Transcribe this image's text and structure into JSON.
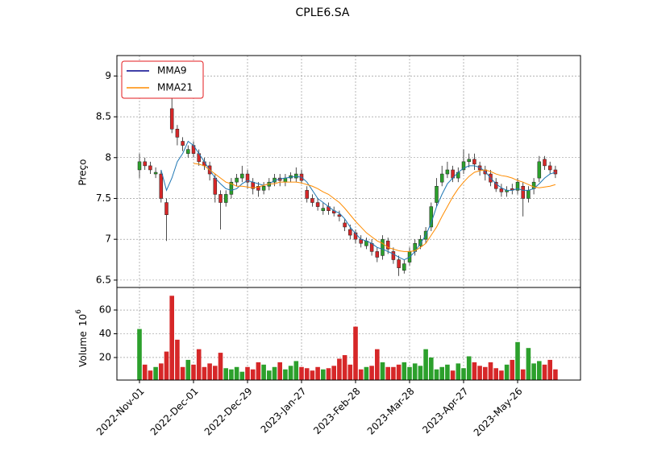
{
  "chart_data": {
    "type": "candlestick",
    "title": "CPLE6.SA",
    "ylabel": "Preço",
    "ylim": [
      6.41,
      9.25
    ],
    "yticks": [
      6.5,
      7.0,
      7.5,
      8.0,
      8.5,
      9.0
    ],
    "grid": true,
    "legend": "upper left",
    "up_color": "#2ca02c",
    "down_color": "#d62728",
    "categories": [
      "2022-Nov-01",
      null,
      null,
      null,
      null,
      null,
      null,
      null,
      null,
      null,
      "2022-Dec-01",
      null,
      null,
      null,
      null,
      null,
      null,
      null,
      null,
      null,
      "2022-Dec-29",
      null,
      null,
      null,
      null,
      null,
      null,
      null,
      null,
      null,
      "2023-Jan-27",
      null,
      null,
      null,
      null,
      null,
      null,
      null,
      null,
      null,
      "2023-Feb-28",
      null,
      null,
      null,
      null,
      null,
      null,
      null,
      null,
      null,
      "2023-Mar-28",
      null,
      null,
      null,
      null,
      null,
      null,
      null,
      null,
      null,
      "2023-Apr-27",
      null,
      null,
      null,
      null,
      null,
      null,
      null,
      null,
      null,
      "2023-May-26",
      null,
      null,
      null,
      null,
      null,
      null,
      null
    ],
    "open": [
      7.85,
      7.95,
      7.9,
      7.8,
      7.8,
      7.45,
      8.6,
      8.35,
      8.2,
      8.05,
      8.15,
      8.05,
      7.95,
      7.9,
      7.75,
      7.55,
      7.45,
      7.55,
      7.7,
      7.75,
      7.8,
      7.7,
      7.65,
      7.6,
      7.65,
      7.7,
      7.75,
      7.7,
      7.75,
      7.75,
      7.8,
      7.6,
      7.5,
      7.45,
      7.35,
      7.4,
      7.35,
      7.3,
      7.2,
      7.12,
      7.08,
      7.0,
      6.92,
      6.95,
      6.85,
      6.8,
      6.98,
      6.85,
      6.75,
      6.62,
      6.72,
      6.85,
      6.92,
      7.0,
      7.15,
      7.45,
      7.7,
      7.8,
      7.85,
      7.75,
      7.85,
      7.95,
      7.98,
      7.9,
      7.85,
      7.8,
      7.7,
      7.62,
      7.58,
      7.62,
      7.6,
      7.65,
      7.5,
      7.62,
      7.75,
      7.98,
      7.9,
      7.85
    ],
    "high": [
      8.05,
      8.0,
      7.95,
      7.88,
      7.85,
      7.5,
      8.75,
      8.4,
      8.25,
      8.15,
      8.2,
      8.1,
      8.0,
      7.95,
      7.8,
      7.6,
      7.6,
      7.75,
      7.8,
      7.9,
      7.85,
      7.75,
      7.7,
      7.7,
      7.75,
      7.8,
      7.8,
      7.8,
      7.82,
      7.88,
      7.85,
      7.65,
      7.55,
      7.5,
      7.45,
      7.45,
      7.4,
      7.35,
      7.25,
      7.18,
      7.12,
      7.05,
      7.02,
      7.0,
      6.9,
      7.05,
      7.02,
      6.9,
      6.8,
      6.75,
      6.9,
      7.0,
      7.05,
      7.15,
      7.45,
      7.75,
      7.9,
      7.95,
      7.9,
      7.88,
      8.1,
      8.05,
      8.05,
      7.95,
      7.9,
      7.85,
      7.75,
      7.68,
      7.65,
      7.68,
      7.75,
      7.7,
      7.65,
      7.75,
      8.02,
      8.02,
      7.95,
      7.9
    ],
    "low": [
      7.75,
      7.85,
      7.8,
      7.75,
      7.45,
      6.98,
      8.3,
      8.15,
      8.08,
      8.0,
      8.0,
      7.9,
      7.85,
      7.72,
      7.45,
      7.12,
      7.4,
      7.5,
      7.65,
      7.7,
      7.62,
      7.55,
      7.52,
      7.55,
      7.6,
      7.65,
      7.65,
      7.65,
      7.7,
      7.7,
      7.68,
      7.45,
      7.4,
      7.35,
      7.3,
      7.3,
      7.28,
      7.22,
      7.1,
      7.0,
      6.95,
      6.9,
      6.88,
      6.8,
      6.72,
      6.75,
      6.82,
      6.7,
      6.55,
      6.58,
      6.68,
      6.8,
      6.88,
      6.95,
      7.1,
      7.4,
      7.65,
      7.75,
      7.7,
      7.7,
      7.8,
      7.88,
      7.85,
      7.78,
      7.72,
      7.65,
      7.58,
      7.52,
      7.52,
      7.55,
      7.55,
      7.28,
      7.45,
      7.55,
      7.7,
      7.85,
      7.8,
      7.75
    ],
    "close": [
      7.95,
      7.9,
      7.85,
      7.82,
      7.5,
      7.3,
      8.35,
      8.25,
      8.15,
      8.1,
      8.05,
      7.95,
      7.9,
      7.8,
      7.55,
      7.45,
      7.55,
      7.7,
      7.75,
      7.8,
      7.7,
      7.62,
      7.6,
      7.65,
      7.7,
      7.75,
      7.72,
      7.75,
      7.78,
      7.8,
      7.72,
      7.5,
      7.45,
      7.4,
      7.38,
      7.35,
      7.32,
      7.28,
      7.15,
      7.05,
      7.0,
      6.95,
      6.98,
      6.85,
      6.78,
      7.0,
      6.88,
      6.75,
      6.65,
      6.7,
      6.85,
      6.95,
      7.0,
      7.1,
      7.4,
      7.65,
      7.8,
      7.85,
      7.75,
      7.82,
      7.95,
      7.98,
      7.92,
      7.85,
      7.8,
      7.7,
      7.62,
      7.58,
      7.6,
      7.6,
      7.7,
      7.5,
      7.6,
      7.7,
      7.95,
      7.9,
      7.85,
      7.8
    ],
    "series": [
      {
        "name": "MMA9",
        "color": "#1f77b4",
        "legend_color": "#00008b",
        "values": [
          null,
          null,
          null,
          null,
          7.85,
          7.6,
          7.75,
          7.95,
          8.05,
          8.2,
          8.15,
          8.05,
          7.95,
          7.85,
          7.75,
          7.68,
          7.62,
          7.6,
          7.62,
          7.68,
          7.72,
          7.7,
          7.68,
          7.66,
          7.68,
          7.72,
          7.74,
          7.75,
          7.76,
          7.77,
          7.76,
          7.7,
          7.6,
          7.5,
          7.45,
          7.4,
          7.35,
          7.32,
          7.25,
          7.15,
          7.07,
          7.0,
          6.98,
          6.95,
          6.9,
          6.88,
          6.85,
          6.82,
          6.78,
          6.75,
          6.78,
          6.85,
          6.95,
          7.05,
          7.2,
          7.4,
          7.55,
          7.68,
          7.75,
          7.82,
          7.87,
          7.9,
          7.9,
          7.88,
          7.83,
          7.75,
          7.68,
          7.63,
          7.6,
          7.6,
          7.62,
          7.6,
          7.6,
          7.62,
          7.68,
          7.75,
          7.8,
          7.82
        ]
      },
      {
        "name": "MMA21",
        "color": "#ff8c00",
        "legend_color": "#ff8c00",
        "values": [
          null,
          null,
          null,
          null,
          null,
          null,
          null,
          null,
          null,
          null,
          7.93,
          7.92,
          7.9,
          7.85,
          7.8,
          7.75,
          7.7,
          7.68,
          7.65,
          7.65,
          7.64,
          7.63,
          7.64,
          7.66,
          7.68,
          7.68,
          7.7,
          7.7,
          7.7,
          7.7,
          7.69,
          7.67,
          7.65,
          7.62,
          7.58,
          7.55,
          7.5,
          7.45,
          7.38,
          7.3,
          7.22,
          7.15,
          7.08,
          7.03,
          6.98,
          6.95,
          6.9,
          6.88,
          6.86,
          6.85,
          6.85,
          6.86,
          6.9,
          6.95,
          7.05,
          7.15,
          7.28,
          7.4,
          7.52,
          7.62,
          7.7,
          7.77,
          7.82,
          7.84,
          7.85,
          7.83,
          7.8,
          7.78,
          7.77,
          7.75,
          7.72,
          7.7,
          7.67,
          7.64,
          7.63,
          7.64,
          7.65,
          7.67
        ]
      }
    ],
    "volume": {
      "ylabel": "Volume",
      "multiplier_base": "10",
      "multiplier_exponent": "6",
      "ylim": [
        1,
        79
      ],
      "yticks": [
        20,
        40,
        60
      ],
      "values": [
        44,
        14,
        9,
        12,
        15,
        25,
        72,
        35,
        12,
        18,
        14,
        27,
        12,
        15,
        13,
        24,
        11,
        10,
        12,
        8,
        12,
        10,
        16,
        14,
        9,
        12,
        16,
        10,
        13,
        17,
        12,
        11,
        9,
        12,
        10,
        11,
        13,
        19,
        22,
        14,
        46,
        10,
        12,
        13,
        27,
        16,
        12,
        12,
        14,
        16,
        12,
        15,
        13,
        27,
        20,
        10,
        12,
        14,
        9,
        15,
        11,
        21,
        16,
        13,
        12,
        16,
        11,
        9,
        14,
        18,
        33,
        10,
        28,
        15,
        17,
        14,
        18,
        10
      ]
    }
  }
}
